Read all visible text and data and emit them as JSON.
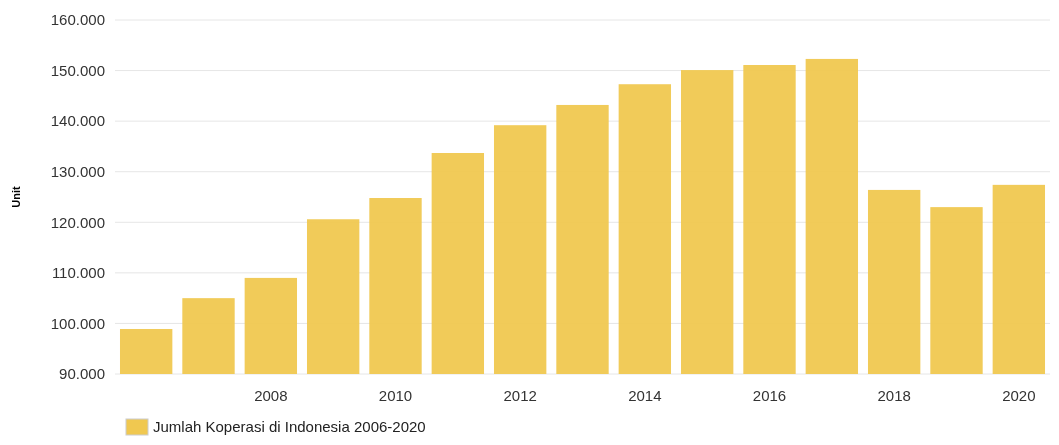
{
  "chart_data": {
    "type": "bar",
    "ylabel": "Unit",
    "categories": [
      null,
      null,
      "2008",
      null,
      "2010",
      null,
      "2012",
      null,
      "2014",
      null,
      "2016",
      null,
      "2018",
      null,
      "2020"
    ],
    "series": [
      {
        "name": "Jumlah Koperasi di Indonesia 2006-2020",
        "color": "#f0c850",
        "values": [
          98900,
          105000,
          109000,
          120600,
          124800,
          133700,
          139200,
          143200,
          147300,
          150100,
          151100,
          152300,
          126400,
          123000,
          127400
        ]
      }
    ],
    "ylim": [
      90000,
      160000
    ],
    "yticks": [
      {
        "value": 90000,
        "label": "90.000"
      },
      {
        "value": 100000,
        "label": "100.000"
      },
      {
        "value": 110000,
        "label": "110.000"
      },
      {
        "value": 120000,
        "label": "120.000"
      },
      {
        "value": 130000,
        "label": "130.000"
      },
      {
        "value": 140000,
        "label": "140.000"
      },
      {
        "value": 150000,
        "label": "150.000"
      },
      {
        "value": 160000,
        "label": "160.000"
      }
    ],
    "grid": "y",
    "legend": "bottom"
  }
}
